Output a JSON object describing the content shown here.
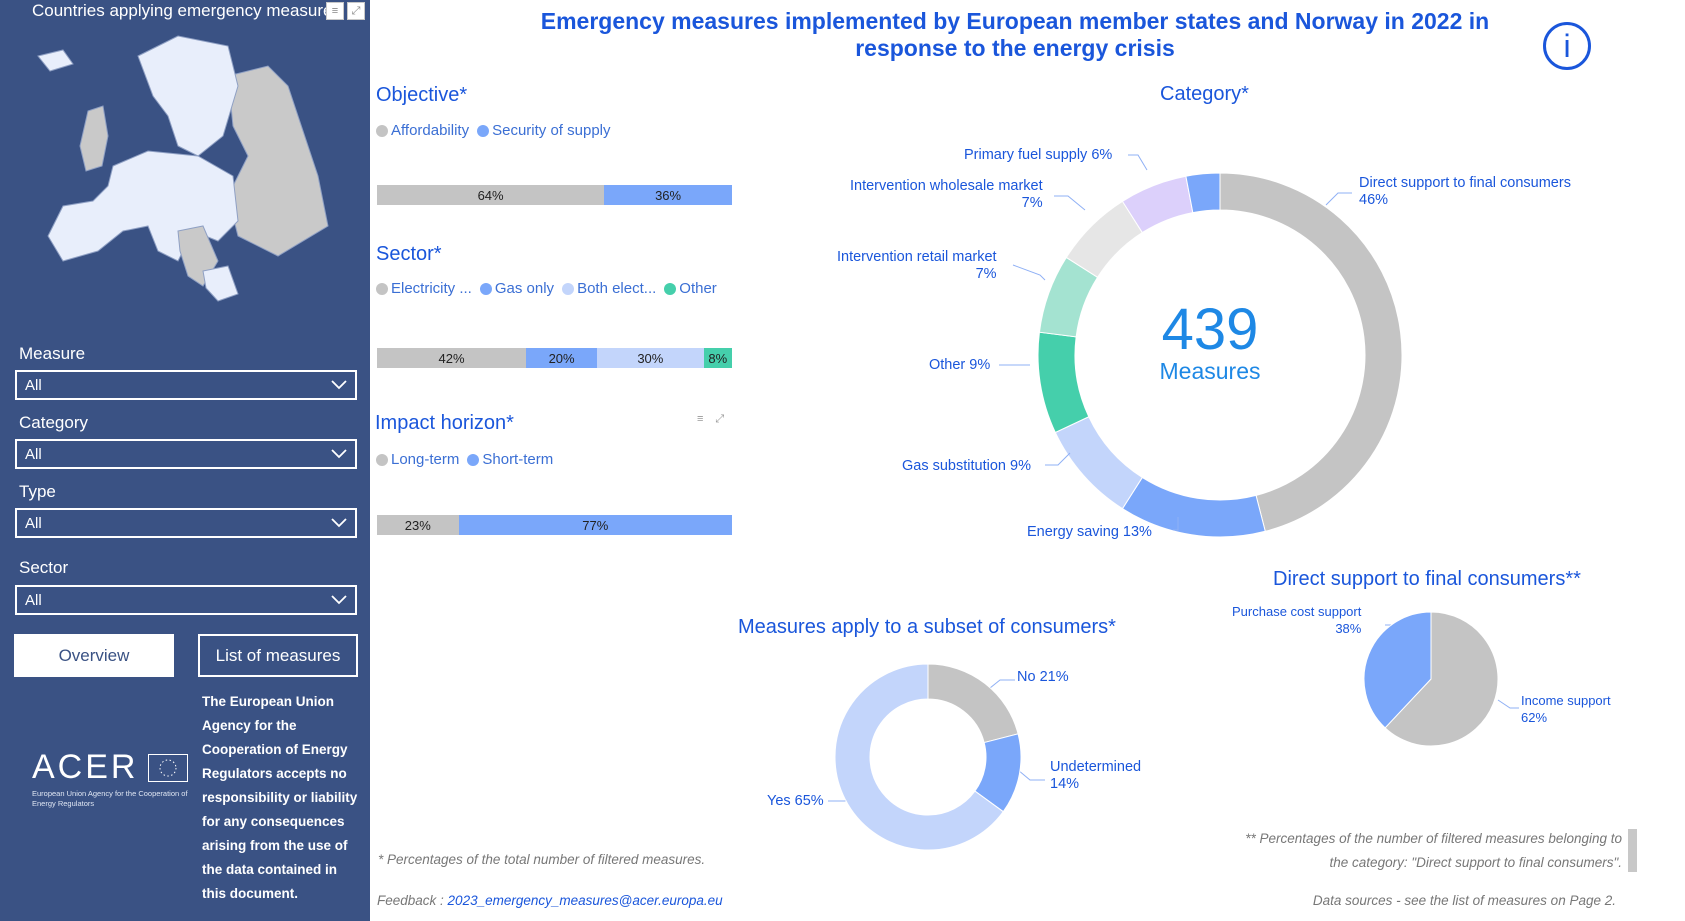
{
  "sidebar": {
    "map_title": "Countries applying emergency measures",
    "slicers": [
      {
        "label": "Measure",
        "value": "All"
      },
      {
        "label": "Category",
        "value": "All"
      },
      {
        "label": "Type",
        "value": "All"
      },
      {
        "label": "Sector",
        "value": "All"
      }
    ],
    "buttons": {
      "overview": "Overview",
      "list": "List of measures"
    },
    "disclaimer": "The European Union Agency for the Cooperation of Energy Regulators accepts no responsibility or liability for any consequences arising from the use of the data contained in this document.",
    "logo": {
      "word": "ACER",
      "subtitle": "European Union Agency for the Cooperation of Energy Regulators"
    }
  },
  "header": {
    "title": "Emergency measures implemented by European member states and Norway in 2022 in response to the energy crisis",
    "info_icon": "info-icon"
  },
  "colors": {
    "grey": "#c4c4c4",
    "blue": "#7aa7fa",
    "light_blue": "#c3d5fb",
    "teal": "#45cfab",
    "light_teal": "#a4e3d1",
    "lavender": "#dcd0fb",
    "light_grey": "#e6e6e6",
    "title_blue": "#1a56db"
  },
  "chart_data": [
    {
      "type": "bar",
      "title": "Objective*",
      "series": [
        {
          "name": "Affordability",
          "value": 64,
          "label": "64%"
        },
        {
          "name": "Security of supply",
          "value": 36,
          "label": "36%"
        }
      ]
    },
    {
      "type": "bar",
      "title": "Sector*",
      "legend": [
        "Electricity ...",
        "Gas only",
        "Both elect...",
        "Other"
      ],
      "series": [
        {
          "name": "Electricity ...",
          "value": 42,
          "label": "42%"
        },
        {
          "name": "Gas only",
          "value": 20,
          "label": "20%"
        },
        {
          "name": "Both elect...",
          "value": 30,
          "label": "30%"
        },
        {
          "name": "Other",
          "value": 8,
          "label": "8%"
        }
      ]
    },
    {
      "type": "bar",
      "title": "Impact horizon*",
      "series": [
        {
          "name": "Long-term",
          "value": 23,
          "label": "23%"
        },
        {
          "name": "Short-term",
          "value": 77,
          "label": "77%"
        }
      ]
    },
    {
      "type": "pie",
      "title": "Category*",
      "center_value": "439",
      "center_label": "Measures",
      "slices": [
        {
          "name": "Direct support to final consumers",
          "value": 46,
          "label": "46%"
        },
        {
          "name": "Energy saving",
          "value": 13,
          "label": "13%"
        },
        {
          "name": "Gas substitution",
          "value": 9,
          "label": "9%"
        },
        {
          "name": "Other",
          "value": 9,
          "label": "9%"
        },
        {
          "name": "Intervention retail market",
          "value": 7,
          "label": "7%"
        },
        {
          "name": "Intervention wholesale market",
          "value": 7,
          "label": "7%"
        },
        {
          "name": "Primary fuel supply",
          "value": 6,
          "label": "6%"
        },
        {
          "name": "(unlabelled)",
          "value": 3,
          "label": ""
        }
      ]
    },
    {
      "type": "pie",
      "title": "Measures apply to a subset of consumers*",
      "slices": [
        {
          "name": "No",
          "value": 21,
          "label": "21%"
        },
        {
          "name": "Undetermined",
          "value": 14,
          "label": "14%"
        },
        {
          "name": "Yes",
          "value": 65,
          "label": "65%"
        }
      ]
    },
    {
      "type": "pie",
      "title": "Direct support to final consumers**",
      "slices": [
        {
          "name": "Income support",
          "value": 62,
          "label": "62%"
        },
        {
          "name": "Purchase cost support",
          "value": 38,
          "label": "38%"
        }
      ]
    }
  ],
  "labels": {
    "cat_direct": "Direct support to final consumers",
    "cat_direct_pct": "46%",
    "cat_energy": "Energy saving 13%",
    "cat_gas": "Gas substitution 9%",
    "cat_other": "Other 9%",
    "cat_retail": "Intervention retail market",
    "cat_retail_pct": "7%",
    "cat_wholesale": "Intervention wholesale market",
    "cat_wholesale_pct": "7%",
    "cat_primary": "Primary fuel supply 6%",
    "sub_no": "No 21%",
    "sub_und": "Undetermined",
    "sub_und_pct": "14%",
    "sub_yes": "Yes 65%",
    "dir_purchase": "Purchase cost support",
    "dir_purchase_pct": "38%",
    "dir_income": "Income support",
    "dir_income_pct": "62%"
  },
  "footer": {
    "note_left": "* Percentages of the total number of  filtered measures.",
    "note_right_1": "** Percentages of the number of  filtered measures belonging to",
    "note_right_2": "the category: \"Direct support to final consumers\".",
    "feedback_label": "Feedback : ",
    "feedback_email": "2023_emergency_measures@acer.europa.eu",
    "data_sources": "Data sources - see the list of measures on Page 2."
  }
}
